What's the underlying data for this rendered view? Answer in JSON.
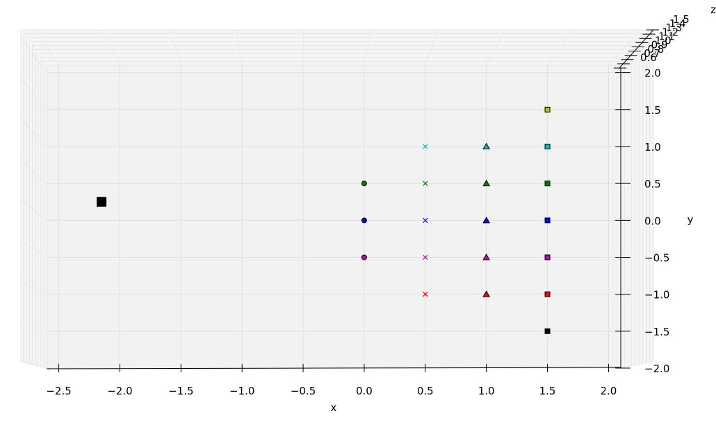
{
  "chart_data": {
    "type": "scatter",
    "projection": "3d",
    "view": "top-down",
    "grid": true,
    "pane_color": "#f2f2f2",
    "xlabel": "x",
    "ylabel": "y",
    "zlabel": "z",
    "xlim": [
      -2.6,
      2.1
    ],
    "ylim": [
      -2.0,
      2.1
    ],
    "zlim": [
      0.6,
      1.5
    ],
    "x_ticks": [
      {
        "v": -2.5,
        "label": "−2.5"
      },
      {
        "v": -2.0,
        "label": "−2.0"
      },
      {
        "v": -1.5,
        "label": "−1.5"
      },
      {
        "v": -1.0,
        "label": "−1.0"
      },
      {
        "v": -0.5,
        "label": "−0.5"
      },
      {
        "v": 0.0,
        "label": "0.0"
      },
      {
        "v": 0.5,
        "label": "0.5"
      },
      {
        "v": 1.0,
        "label": "1.0"
      },
      {
        "v": 1.5,
        "label": "1.5"
      },
      {
        "v": 2.0,
        "label": "2.0"
      }
    ],
    "y_ticks": [
      {
        "v": 2.0,
        "label": "2.0"
      },
      {
        "v": 1.5,
        "label": "1.5"
      },
      {
        "v": 1.0,
        "label": "1.0"
      },
      {
        "v": 0.5,
        "label": "0.5"
      },
      {
        "v": 0.0,
        "label": "0.0"
      },
      {
        "v": -0.5,
        "label": "−0.5"
      },
      {
        "v": -1.0,
        "label": "−1.0"
      },
      {
        "v": -1.5,
        "label": "−1.5"
      },
      {
        "v": -2.0,
        "label": "−2.0"
      }
    ],
    "z_ticks": [
      {
        "v": 0.6,
        "label": "0.6"
      },
      {
        "v": 0.7,
        "label": "0.7"
      },
      {
        "v": 0.8,
        "label": "0.8"
      },
      {
        "v": 0.9,
        "label": "0.9"
      },
      {
        "v": 1.0,
        "label": "1.0"
      },
      {
        "v": 1.1,
        "label": "1.1"
      },
      {
        "v": 1.2,
        "label": "1.2"
      },
      {
        "v": 1.3,
        "label": "1.3"
      },
      {
        "v": 1.4,
        "label": "1.4"
      },
      {
        "v": 1.5,
        "label": "1.5"
      }
    ],
    "points": [
      {
        "x": -2.15,
        "y": 0.25,
        "marker": "square",
        "color": "#000000",
        "size": "large"
      },
      {
        "x": 0.0,
        "y": 0.5,
        "marker": "circle",
        "color": "#008000"
      },
      {
        "x": 0.0,
        "y": 0.0,
        "marker": "circle",
        "color": "#0000ff"
      },
      {
        "x": 0.0,
        "y": -0.5,
        "marker": "circle",
        "color": "#bf00bf"
      },
      {
        "x": 0.5,
        "y": 1.0,
        "marker": "x",
        "color": "#00bfbf"
      },
      {
        "x": 0.5,
        "y": 0.5,
        "marker": "x",
        "color": "#008000"
      },
      {
        "x": 0.5,
        "y": 0.0,
        "marker": "x",
        "color": "#0000ff"
      },
      {
        "x": 0.5,
        "y": -0.5,
        "marker": "x",
        "color": "#bf00bf"
      },
      {
        "x": 0.5,
        "y": -1.0,
        "marker": "x",
        "color": "#ff0000"
      },
      {
        "x": 1.0,
        "y": 1.0,
        "marker": "triangle",
        "color": "#00bfbf"
      },
      {
        "x": 1.0,
        "y": 0.5,
        "marker": "triangle",
        "color": "#008000"
      },
      {
        "x": 1.0,
        "y": 0.0,
        "marker": "triangle",
        "color": "#0000ff"
      },
      {
        "x": 1.0,
        "y": -0.5,
        "marker": "triangle",
        "color": "#bf00bf"
      },
      {
        "x": 1.0,
        "y": -1.0,
        "marker": "triangle",
        "color": "#ff0000"
      },
      {
        "x": 1.5,
        "y": 1.5,
        "marker": "square",
        "color": "#bfbf00"
      },
      {
        "x": 1.5,
        "y": 1.0,
        "marker": "square",
        "color": "#00bfbf"
      },
      {
        "x": 1.5,
        "y": 0.5,
        "marker": "square",
        "color": "#008000"
      },
      {
        "x": 1.5,
        "y": 0.0,
        "marker": "square",
        "color": "#0000ff"
      },
      {
        "x": 1.5,
        "y": -0.5,
        "marker": "square",
        "color": "#bf00bf"
      },
      {
        "x": 1.5,
        "y": -1.0,
        "marker": "square",
        "color": "#ff0000"
      },
      {
        "x": 1.5,
        "y": -1.5,
        "marker": "square",
        "color": "#000000"
      }
    ]
  }
}
